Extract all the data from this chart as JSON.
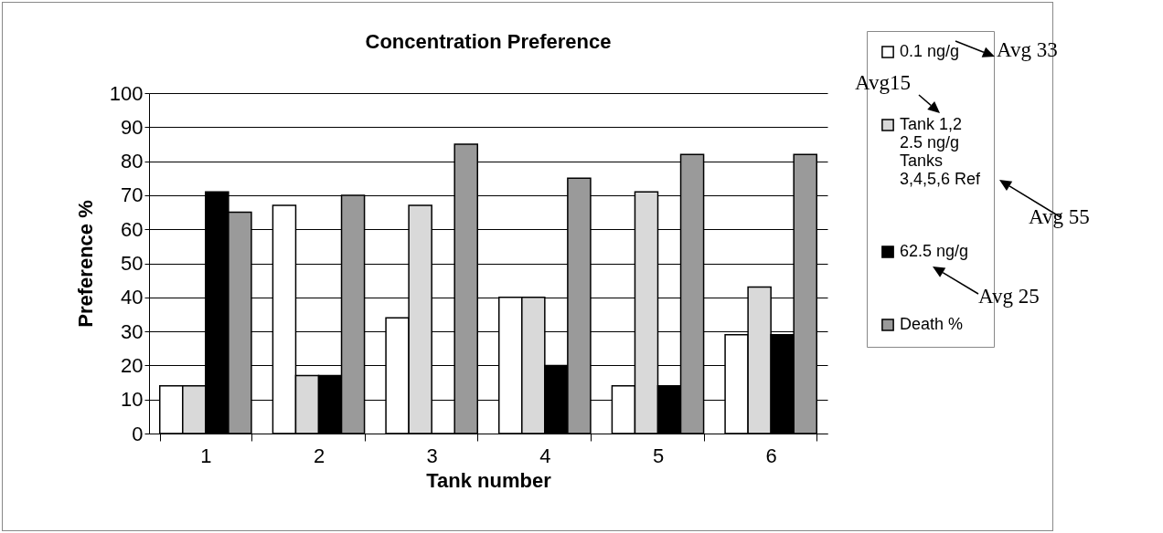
{
  "chart_data": {
    "type": "bar",
    "title": "Concentration Preference",
    "xlabel": "Tank number",
    "ylabel": "Preference %",
    "categories": [
      "1",
      "2",
      "3",
      "4",
      "5",
      "6"
    ],
    "series": [
      {
        "name": "0.1 ng/g",
        "color": "#ffffff",
        "values": [
          14,
          67,
          34,
          40,
          14,
          29
        ]
      },
      {
        "name": "Tank 1,2 2.5 ng/g Tanks 3,4,5,6 Ref",
        "color": "#d9d9d9",
        "values": [
          14,
          17,
          67,
          40,
          71,
          43
        ]
      },
      {
        "name": "62.5 ng/g",
        "color": "#000000",
        "values": [
          71,
          17,
          0,
          20,
          14,
          29
        ]
      },
      {
        "name": "Death %",
        "color": "#9a9a9a",
        "values": [
          65,
          70,
          85,
          75,
          82,
          82
        ]
      }
    ],
    "ylim": [
      0,
      100
    ],
    "yticks": [
      0,
      10,
      20,
      30,
      40,
      50,
      60,
      70,
      80,
      90,
      100
    ],
    "grid": "y",
    "legend": "right",
    "annotations": [
      "Avg 33",
      "Avg15",
      "Avg 55",
      "Avg 25"
    ]
  }
}
